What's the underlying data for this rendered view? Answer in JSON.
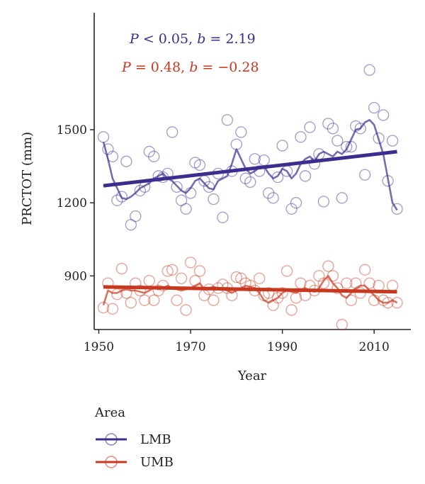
{
  "chart_data": {
    "type": "line",
    "xlabel": "Year",
    "ylabel": "PRCTOT (mm)",
    "xlim": [
      1949,
      2018
    ],
    "ylim": [
      680,
      1980
    ],
    "xticks": [
      1950,
      1970,
      1990,
      2010
    ],
    "yticks": [
      900,
      1200,
      1500
    ],
    "grid": false,
    "legend": {
      "title": "Area",
      "placement": "bottom-left"
    },
    "annotations": [
      {
        "text_p": "P",
        "text_rest": " < 0.05, ",
        "text_b": "b",
        "text_val": " = 2.19",
        "color": "#3a2f8f"
      },
      {
        "text_p": "P",
        "text_rest": " = 0.48, ",
        "text_b": "b",
        "text_val": " = −0.28",
        "color": "#c8381e"
      }
    ],
    "series": [
      {
        "name": "LMB",
        "color": "#3a2f8f",
        "years": [
          1951,
          1952,
          1953,
          1954,
          1955,
          1956,
          1957,
          1958,
          1959,
          1960,
          1961,
          1962,
          1963,
          1964,
          1965,
          1966,
          1967,
          1968,
          1969,
          1970,
          1971,
          1972,
          1973,
          1974,
          1975,
          1976,
          1977,
          1978,
          1979,
          1980,
          1981,
          1982,
          1983,
          1984,
          1985,
          1986,
          1987,
          1988,
          1989,
          1990,
          1991,
          1992,
          1993,
          1994,
          1995,
          1996,
          1997,
          1998,
          1999,
          2000,
          2001,
          2002,
          2003,
          2004,
          2005,
          2006,
          2007,
          2008,
          2009,
          2010,
          2011,
          2012,
          2013,
          2014,
          2015
        ],
        "observed": [
          1470,
          1420,
          1390,
          1210,
          1225,
          1370,
          1110,
          1145,
          1250,
          1265,
          1410,
          1390,
          1310,
          1305,
          1320,
          1490,
          1265,
          1210,
          1175,
          1240,
          1365,
          1355,
          1290,
          1265,
          1215,
          1320,
          1140,
          1540,
          1330,
          1440,
          1490,
          1300,
          1285,
          1380,
          1330,
          1375,
          1240,
          1220,
          1305,
          1435,
          1330,
          1175,
          1200,
          1470,
          1310,
          1510,
          1360,
          1400,
          1205,
          1525,
          1505,
          1455,
          1220,
          1430,
          1430,
          1515,
          1505,
          1315,
          1745,
          1590,
          1465,
          1560,
          1290,
          1455,
          1175
        ],
        "moving_avg": [
          1450,
          1380,
          1300,
          1260,
          1220,
          1215,
          1225,
          1240,
          1260,
          1270,
          1280,
          1300,
          1310,
          1320,
          1300,
          1290,
          1270,
          1250,
          1240,
          1260,
          1290,
          1300,
          1280,
          1260,
          1255,
          1290,
          1300,
          1310,
          1360,
          1420,
          1380,
          1340,
          1320,
          1330,
          1345,
          1350,
          1320,
          1300,
          1310,
          1340,
          1330,
          1300,
          1320,
          1360,
          1380,
          1390,
          1370,
          1400,
          1410,
          1400,
          1390,
          1410,
          1400,
          1420,
          1460,
          1500,
          1505,
          1530,
          1540,
          1520,
          1460,
          1400,
          1300,
          1200,
          1170
        ],
        "trend": [
          1270,
          1410
        ]
      },
      {
        "name": "UMB",
        "color": "#c8381e",
        "years": [
          1951,
          1952,
          1953,
          1954,
          1955,
          1956,
          1957,
          1958,
          1959,
          1960,
          1961,
          1962,
          1963,
          1964,
          1965,
          1966,
          1967,
          1968,
          1969,
          1970,
          1971,
          1972,
          1973,
          1974,
          1975,
          1976,
          1977,
          1978,
          1979,
          1980,
          1981,
          1982,
          1983,
          1984,
          1985,
          1986,
          1987,
          1988,
          1989,
          1990,
          1991,
          1992,
          1993,
          1994,
          1995,
          1996,
          1997,
          1998,
          1999,
          2000,
          2001,
          2002,
          2003,
          2004,
          2005,
          2006,
          2007,
          2008,
          2009,
          2010,
          2011,
          2012,
          2013,
          2014,
          2015
        ],
        "observed": [
          770,
          870,
          765,
          825,
          930,
          830,
          790,
          870,
          840,
          800,
          880,
          800,
          840,
          860,
          920,
          925,
          800,
          890,
          760,
          955,
          880,
          920,
          820,
          845,
          800,
          850,
          865,
          850,
          820,
          895,
          890,
          870,
          860,
          840,
          890,
          820,
          830,
          780,
          810,
          830,
          920,
          760,
          810,
          870,
          820,
          860,
          840,
          900,
          870,
          940,
          900,
          850,
          700,
          870,
          800,
          870,
          830,
          925,
          870,
          800,
          860,
          800,
          790,
          860,
          790
        ],
        "moving_avg": [
          780,
          840,
          830,
          830,
          840,
          845,
          840,
          840,
          835,
          830,
          840,
          850,
          845,
          850,
          860,
          850,
          845,
          840,
          845,
          850,
          860,
          870,
          845,
          850,
          855,
          850,
          845,
          840,
          830,
          840,
          850,
          860,
          855,
          850,
          830,
          800,
          790,
          800,
          810,
          830,
          840,
          835,
          830,
          840,
          850,
          840,
          835,
          850,
          880,
          900,
          870,
          850,
          820,
          810,
          830,
          850,
          860,
          860,
          840,
          820,
          800,
          790,
          790,
          800,
          790
        ],
        "trend": [
          855,
          835
        ]
      }
    ]
  }
}
